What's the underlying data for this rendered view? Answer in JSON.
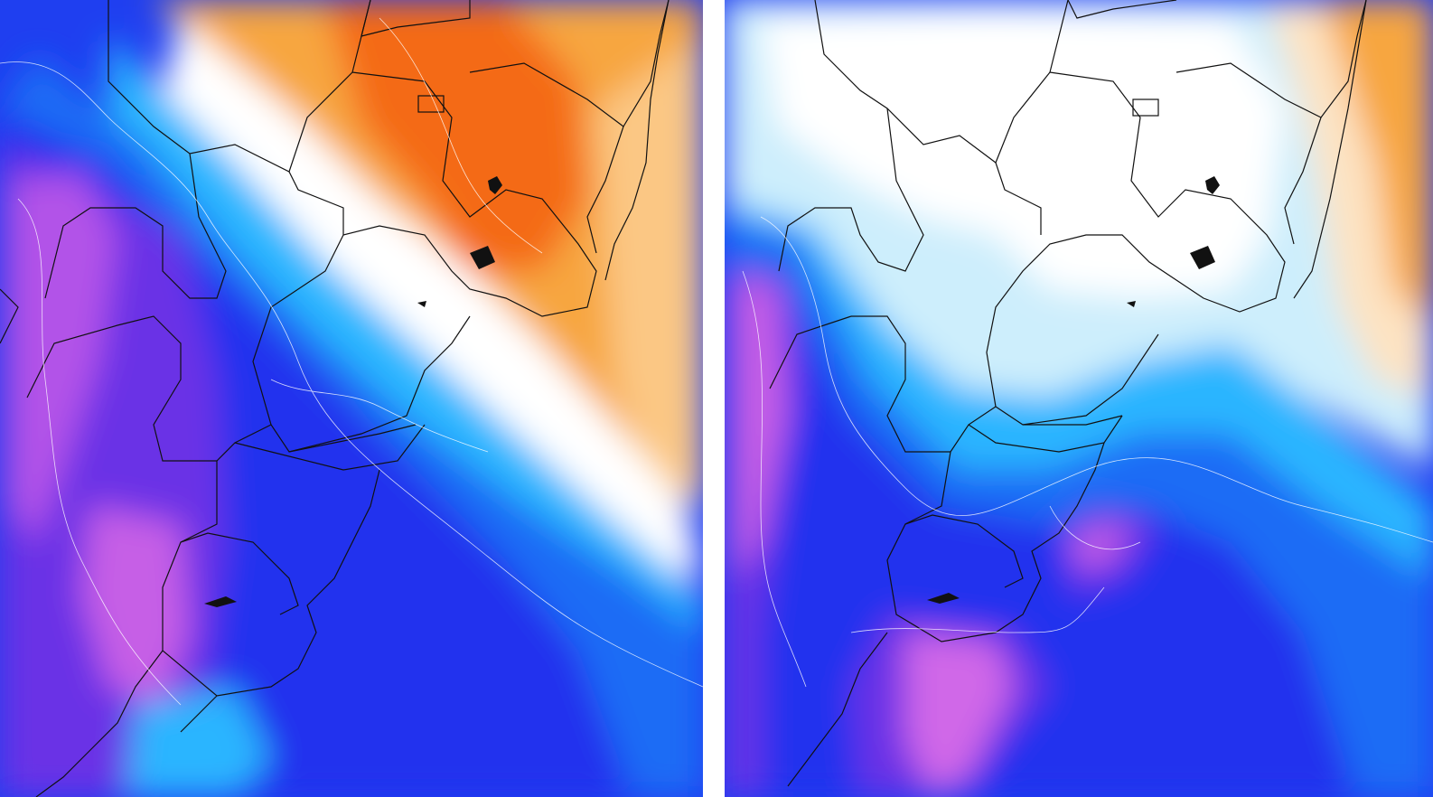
{
  "panels": [
    {
      "id": "left",
      "description_key": "temperature-anomaly-map-1",
      "colors": {
        "cold_deep": "#c45be6",
        "cold_violet": "#6b2fe0",
        "cold_blue": "#1f2ff2",
        "cold_mid": "#1d6df7",
        "cold_light": "#19b5ff",
        "cold_pale": "#bfeeff",
        "neutral": "#ffffff",
        "warm_pale": "#fde3c2",
        "warm": "#f7a640",
        "warm_deep": "#f46a12"
      }
    },
    {
      "id": "right",
      "description_key": "temperature-anomaly-map-2",
      "colors": {
        "cold_deep": "#c45be6",
        "cold_violet": "#6b2fe0",
        "cold_blue": "#1f2ff2",
        "cold_mid": "#1d6df7",
        "cold_light": "#19b5ff",
        "cold_pale": "#bfeeff",
        "neutral": "#ffffff",
        "warm_pale": "#fde3c2",
        "warm": "#f7a640"
      }
    }
  ],
  "divider_color": "#ffffff"
}
